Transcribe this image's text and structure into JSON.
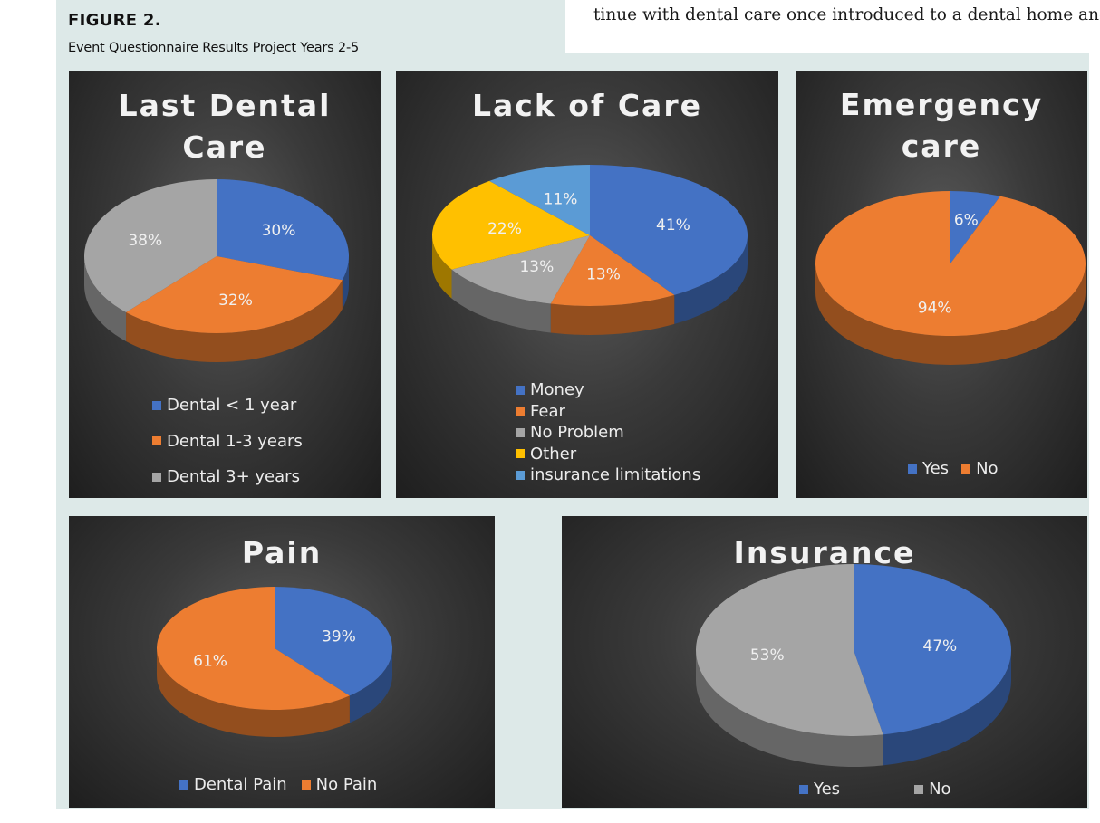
{
  "figure": {
    "label": "FIGURE 2.",
    "caption": "Event Questionnaire Results Project Years 2-5"
  },
  "body_text": {
    "line1": "tinue with dental care once introduced to a dental home and"
  },
  "colors": {
    "blue": "#4472c4",
    "orange": "#ed7d31",
    "gray": "#a5a5a5",
    "yellow": "#ffc000",
    "lightblue": "#5b9bd5"
  },
  "chart_data": [
    {
      "type": "pie",
      "title_lines": [
        "Last Dental",
        "Care"
      ],
      "series": [
        {
          "name": "Dental < 1 year",
          "value": 30,
          "label": "30%",
          "color": "#4472c4"
        },
        {
          "name": "Dental 1-3 years",
          "value": 32,
          "label": "32%",
          "color": "#ed7d31"
        },
        {
          "name": "Dental 3+ years",
          "value": 38,
          "label": "38%",
          "color": "#a5a5a5"
        }
      ],
      "legend": "bottom"
    },
    {
      "type": "pie",
      "title_lines": [
        "Lack of Care"
      ],
      "series": [
        {
          "name": "Money",
          "value": 41,
          "label": "41%",
          "color": "#4472c4"
        },
        {
          "name": "Fear",
          "value": 13,
          "label": "13%",
          "color": "#ed7d31"
        },
        {
          "name": "No Problem",
          "value": 13,
          "label": "13%",
          "color": "#a5a5a5"
        },
        {
          "name": "Other",
          "value": 22,
          "label": "22%",
          "color": "#ffc000"
        },
        {
          "name": "insurance limitations",
          "value": 11,
          "label": "11%",
          "color": "#5b9bd5"
        }
      ],
      "legend": "bottom"
    },
    {
      "type": "pie",
      "title_lines": [
        "Emergency",
        "care"
      ],
      "series": [
        {
          "name": "Yes",
          "value": 6,
          "label": "6%",
          "color": "#4472c4"
        },
        {
          "name": "No",
          "value": 94,
          "label": "94%",
          "color": "#ed7d31"
        }
      ],
      "legend": "bottom"
    },
    {
      "type": "pie",
      "title_lines": [
        "Pain"
      ],
      "series": [
        {
          "name": "Dental Pain",
          "value": 39,
          "label": "39%",
          "color": "#4472c4"
        },
        {
          "name": "No Pain",
          "value": 61,
          "label": "61%",
          "color": "#ed7d31"
        }
      ],
      "legend": "bottom"
    },
    {
      "type": "pie",
      "title_lines": [
        "Insurance"
      ],
      "series": [
        {
          "name": "Yes",
          "value": 47,
          "label": "47%",
          "color": "#4472c4"
        },
        {
          "name": "No",
          "value": 53,
          "label": "53%",
          "color": "#a5a5a5"
        }
      ],
      "legend": "bottom"
    }
  ]
}
